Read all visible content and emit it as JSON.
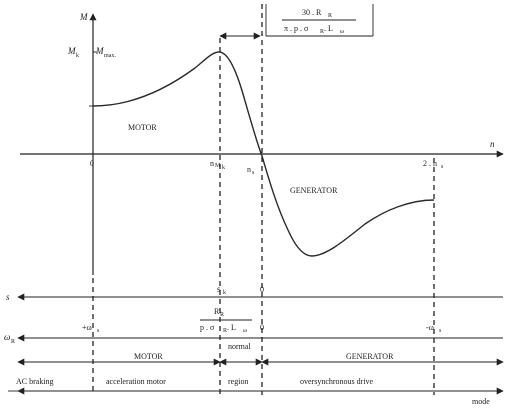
{
  "axes": {
    "y_label": "M",
    "x_label": "n",
    "mk_label": "M",
    "mk_sub": "k",
    "mmax_label": "M",
    "mmax_sub": "max.",
    "origin": "0",
    "nmk_label": "n",
    "nmk_sub": "M",
    "nmk_sub2": "k",
    "ns_label": "n",
    "ns_sub": "s",
    "two_ns_label": "2 . n",
    "two_ns_sub": "s"
  },
  "formula_box": {
    "numerator": "30 . R",
    "numerator_sub": "R",
    "denominator": "π . p . σ",
    "denominator_sub": "R",
    "denominator_tail": " . L",
    "denominator_tail_sub": "ω"
  },
  "curve_labels": {
    "motor": "MOTOR",
    "generator": "GENERATOR"
  },
  "slip_axis": {
    "label": "s",
    "sk": "s",
    "sk_sub": "k",
    "zero": "0"
  },
  "omega_axis": {
    "label": "ω",
    "label_sub": "R",
    "left": "+ω",
    "left_sub": "s",
    "mid_num": "R",
    "mid_num_sub": "R",
    "mid_den": "p . σ",
    "mid_den_sub": "R",
    "mid_den_tail": " . L",
    "mid_den_tail_sub": "ω",
    "zero": "0",
    "right": "-ω",
    "right_sub": "s"
  },
  "regions": {
    "motor": "MOTOR",
    "normal_line1": "normal",
    "normal_line2": "region",
    "generator": "GENERATOR"
  },
  "modes": {
    "ac_braking": "AC braking",
    "acceleration_motor": "acceleration motor",
    "oversynchronous_drive": "oversynchronous drive",
    "mode_label": "mode"
  }
}
